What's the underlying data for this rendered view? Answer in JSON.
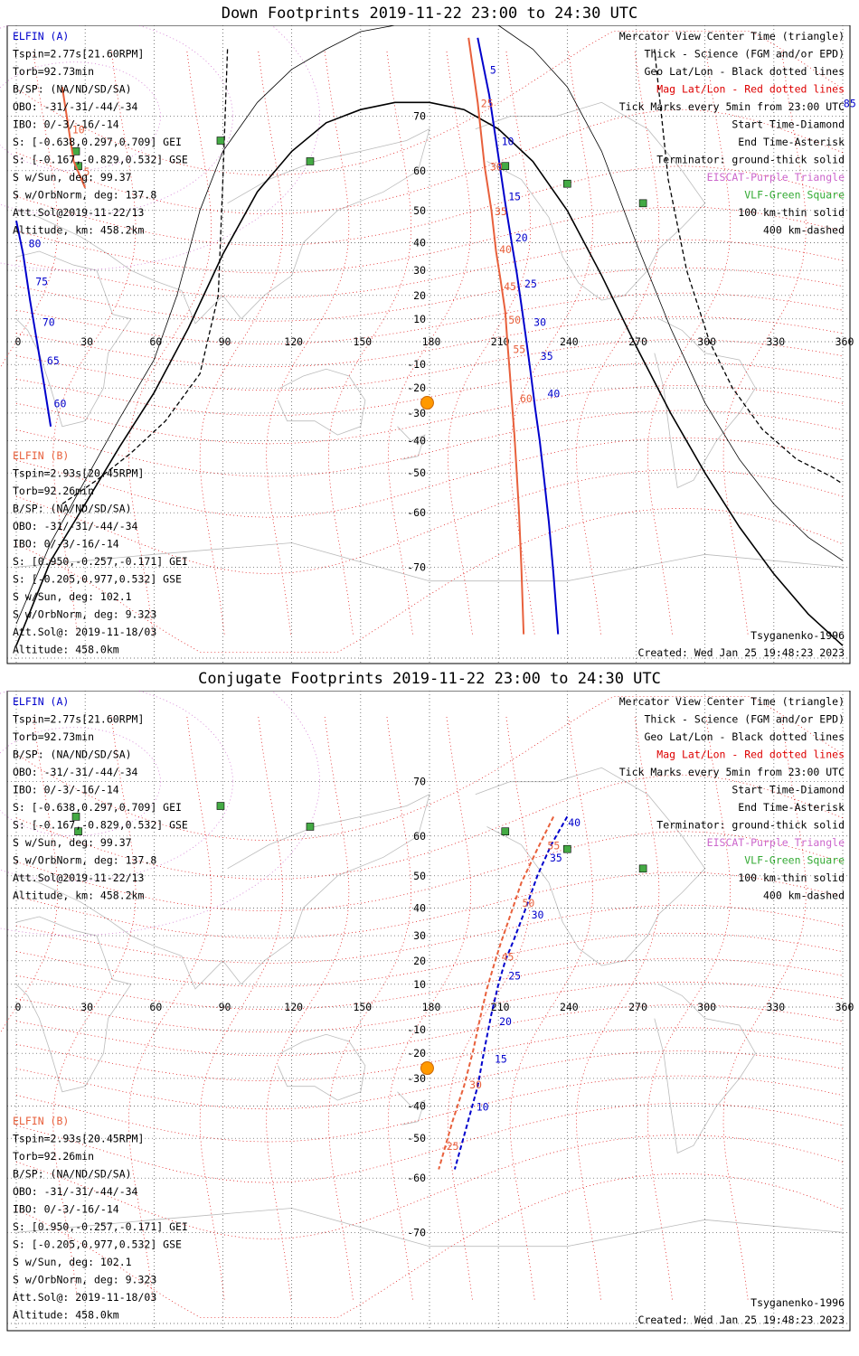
{
  "colors": {
    "a_elfin": "#0000cc",
    "b_elfin": "#e8603c",
    "mag": "#dd0000",
    "elisca": "#cc66cc",
    "vlf": "#33aa33",
    "sun": "#ff9900"
  },
  "panels": [
    {
      "title": "Down Footprints 2019-11-22 23:00 to 24:30 UTC",
      "elfin_a": {
        "name": "ELFIN (A)",
        "lines": [
          "Tspin=2.77s[21.60RPM]",
          "Torb=92.73min",
          "B/SP: (NA/ND/SD/SA)",
          "OBO: -31/-31/-44/-34",
          "IBO: 0/-3/-16/-14",
          "S: [-0.638,0.297,0.709] GEI",
          "S: [-0.167,-0.829,0.532] GSE",
          "S w/Sun, deg: 99.37",
          "S w/OrbNorm, deg: 137.8",
          "Att.Sol@2019-11-22/13",
          "Altitude, km: 458.2km"
        ]
      },
      "elfin_b": {
        "name": "ELFIN (B)",
        "lines": [
          "Tspin=2.93s[20.45RPM]",
          "Torb=92.26min",
          "B/SP: (NA/ND/SD/SA)",
          "OBO: -31/-31/-44/-34",
          "IBO: 0/-3/-16/-14",
          "S: [0.950,-0.257,-0.171] GEI",
          "S: [-0.205,0.977,0.532] GSE",
          "S w/Sun, deg: 102.1",
          "S w/OrbNorm, deg: 9.323",
          "Att.Sol@: 2019-11-18/03",
          "Altitude: 458.0km"
        ]
      },
      "legend": [
        "Mercator View Center Time (triangle)",
        "Thick - Science (FGM and/or EPD)",
        "Geo Lat/Lon - Black dotted lines",
        "Mag Lat/Lon - Red dotted lines",
        "Tick Marks every 5min from 23:00 UTC",
        "Start Time-Diamond",
        "End Time-Asterisk",
        "Terminator: ground-thick solid",
        "EISCAT-Purple Triangle",
        "VLF-Green Square",
        "100 km-thin solid",
        "400 km-dashed"
      ],
      "model": "Tsyganenko-1996",
      "created": "Created: Wed Jan 25 19:48:23 2023"
    },
    {
      "title": "Conjugate Footprints 2019-11-22 23:00 to 24:30 UTC",
      "elfin_a": {
        "name": "ELFIN (A)",
        "lines": [
          "Tspin=2.77s[21.60RPM]",
          "Torb=92.73min",
          "B/SP: (NA/ND/SD/SA)",
          "OBO: -31/-31/-44/-34",
          "IBO: 0/-3/-16/-14",
          "S: [-0.638,0.297,0.709] GEI",
          "S: [-0.167,-0.829,0.532] GSE",
          "S w/Sun, deg: 99.37",
          "S w/OrbNorm, deg: 137.8",
          "Att.Sol@2019-11-22/13",
          "Altitude, km: 458.2km"
        ]
      },
      "elfin_b": {
        "name": "ELFIN (B)",
        "lines": [
          "Tspin=2.93s[20.45RPM]",
          "Torb=92.26min",
          "B/SP: (NA/ND/SD/SA)",
          "OBO: -31/-31/-44/-34",
          "IBO: 0/-3/-16/-14",
          "S: [0.950,-0.257,-0.171] GEI",
          "S: [-0.205,0.977,0.532] GSE",
          "S w/Sun, deg: 102.1",
          "S w/OrbNorm, deg: 9.323",
          "Att.Sol@: 2019-11-18/03",
          "Altitude: 458.0km"
        ]
      },
      "legend": [
        "Mercator View Center Time (triangle)",
        "Thick - Science (FGM and/or EPD)",
        "Geo Lat/Lon - Black dotted lines",
        "Mag Lat/Lon - Red dotted lines",
        "Tick Marks every 5min from 23:00 UTC",
        "Start Time-Diamond",
        "End Time-Asterisk",
        "Terminator: ground-thick solid",
        "EISCAT-Purple Triangle",
        "VLF-Green Square",
        "100 km-thin solid",
        "400 km-dashed"
      ],
      "model": "Tsyganenko-1996",
      "created": "Created: Wed Jan 25 19:48:23 2023"
    }
  ],
  "chart_data": [
    {
      "type": "line",
      "title": "Down Footprints 2019-11-22 23:00 to 24:30 UTC",
      "projection": "mercator",
      "xlim": [
        0,
        360
      ],
      "ylim": [
        -80,
        80
      ],
      "x_ticks": [
        0,
        30,
        60,
        90,
        120,
        150,
        180,
        210,
        240,
        270,
        300,
        330,
        360
      ],
      "y_ticks": [
        70,
        60,
        50,
        40,
        30,
        20,
        10,
        -10,
        -20,
        -30,
        -40,
        -50,
        -60,
        -70
      ],
      "grid": true,
      "terminator": [
        [
          0,
          -79
        ],
        [
          15,
          -69
        ],
        [
          30,
          -58
        ],
        [
          45,
          -42
        ],
        [
          60,
          -22
        ],
        [
          75,
          6
        ],
        [
          90,
          36
        ],
        [
          105,
          55
        ],
        [
          120,
          64
        ],
        [
          135,
          69
        ],
        [
          150,
          71
        ],
        [
          165,
          72
        ],
        [
          180,
          72
        ],
        [
          195,
          71
        ],
        [
          210,
          68
        ],
        [
          225,
          62
        ],
        [
          240,
          50
        ],
        [
          255,
          28
        ],
        [
          270,
          -2
        ],
        [
          285,
          -30
        ],
        [
          300,
          -50
        ],
        [
          315,
          -63
        ],
        [
          330,
          -71
        ],
        [
          345,
          -76
        ],
        [
          360,
          -79
        ]
      ],
      "terminator_100km": [
        [
          0,
          -77
        ],
        [
          15,
          -66
        ],
        [
          30,
          -52
        ],
        [
          45,
          -32
        ],
        [
          60,
          -8
        ],
        [
          70,
          20
        ],
        [
          80,
          50
        ],
        [
          90,
          64
        ],
        [
          105,
          72
        ],
        [
          120,
          76
        ],
        [
          135,
          78
        ],
        [
          150,
          79.5
        ],
        [
          165,
          80
        ]
      ],
      "terminator_100km_east": [
        [
          210,
          80
        ],
        [
          225,
          78
        ],
        [
          240,
          74
        ],
        [
          255,
          64
        ],
        [
          270,
          40
        ],
        [
          285,
          6
        ],
        [
          300,
          -26
        ],
        [
          315,
          -46
        ],
        [
          330,
          -58
        ],
        [
          345,
          -65
        ],
        [
          360,
          -69
        ]
      ],
      "terminator_400km": [
        [
          20,
          -58
        ],
        [
          35,
          -52
        ],
        [
          50,
          -44
        ],
        [
          65,
          -33
        ],
        [
          80,
          -14
        ],
        [
          88,
          20
        ],
        [
          90,
          58
        ],
        [
          92,
          78
        ]
      ],
      "terminator_400km_east": [
        [
          278,
          78
        ],
        [
          284,
          58
        ],
        [
          292,
          30
        ],
        [
          302,
          0
        ],
        [
          312,
          -20
        ],
        [
          325,
          -36
        ],
        [
          340,
          -46
        ],
        [
          355,
          -51
        ],
        [
          360,
          -53
        ]
      ],
      "vlf_sites": [
        [
          26,
          64
        ],
        [
          27,
          61
        ],
        [
          89,
          66
        ],
        [
          128,
          62
        ],
        [
          213,
          61
        ],
        [
          240,
          57
        ],
        [
          273,
          52
        ]
      ],
      "sun": [
        179,
        -26
      ],
      "series": [
        {
          "name": "ELFIN (A)",
          "lon_lat": [
            [
              201,
              79
            ],
            [
              206,
              73
            ],
            [
              210,
              63
            ],
            [
              213,
              52
            ],
            [
              216,
              39
            ],
            [
              218,
              29
            ],
            [
              220,
              16
            ],
            [
              222,
              2
            ],
            [
              224,
              -13
            ],
            [
              226,
              -28
            ],
            [
              228,
              -40
            ],
            [
              230,
              -52
            ],
            [
              232,
              -62
            ],
            [
              234,
              -71
            ],
            [
              236,
              -78
            ]
          ],
          "ticks": [
            {
              "t": "5",
              "lon": 204,
              "lat": 76
            },
            {
              "t": "10",
              "lon": 209,
              "lat": 66
            },
            {
              "t": "15",
              "lon": 212,
              "lat": 54
            },
            {
              "t": "20",
              "lon": 215,
              "lat": 42
            },
            {
              "t": "25",
              "lon": 219,
              "lat": 25
            },
            {
              "t": "30",
              "lon": 223,
              "lat": 9
            },
            {
              "t": "35",
              "lon": 226,
              "lat": -6
            },
            {
              "t": "40",
              "lon": 229,
              "lat": -22
            }
          ]
        },
        {
          "name": "ELFIN (A) wrap",
          "lon_lat": [
            [
              0,
              47
            ],
            [
              3,
              36
            ],
            [
              6,
              18
            ],
            [
              9,
              0
            ],
            [
              12,
              -18
            ],
            [
              15,
              -35
            ]
          ],
          "ticks": [
            {
              "t": "80",
              "lon": 3,
              "lat": 40
            },
            {
              "t": "75",
              "lon": 6,
              "lat": 26
            },
            {
              "t": "70",
              "lon": 9,
              "lat": 9
            },
            {
              "t": "65",
              "lon": 11,
              "lat": -8
            },
            {
              "t": "60",
              "lon": 14,
              "lat": -26
            },
            {
              "t": "85",
              "lon": 358,
              "lat": 72
            }
          ]
        },
        {
          "name": "ELFIN (B)",
          "lon_lat": [
            [
              197,
              79
            ],
            [
              201,
              72
            ],
            [
              204,
              61
            ],
            [
              207,
              50
            ],
            [
              209,
              37
            ],
            [
              211,
              26
            ],
            [
              213,
              13
            ],
            [
              214,
              -1
            ],
            [
              215,
              -14
            ],
            [
              216,
              -27
            ],
            [
              217,
              -38
            ],
            [
              218,
              -50
            ],
            [
              219,
              -60
            ],
            [
              220,
              -70
            ],
            [
              221,
              -78
            ]
          ],
          "ticks": [
            {
              "t": "25",
              "lon": 200,
              "lat": 72
            },
            {
              "t": "30",
              "lon": 204,
              "lat": 61
            },
            {
              "t": "35",
              "lon": 206,
              "lat": 50
            },
            {
              "t": "40",
              "lon": 208,
              "lat": 38
            },
            {
              "t": "45",
              "lon": 210,
              "lat": 24
            },
            {
              "t": "50",
              "lon": 212,
              "lat": 10
            },
            {
              "t": "55",
              "lon": 214,
              "lat": -3
            },
            {
              "t": "60",
              "lon": 217,
              "lat": -24
            }
          ]
        },
        {
          "name": "ELFIN (B) wrap",
          "lon_lat": [
            [
              20,
              74
            ],
            [
              25,
              62
            ],
            [
              30,
              56
            ]
          ],
          "ticks": [
            {
              "t": "10",
              "lon": 22,
              "lat": 68
            },
            {
              "t": "5",
              "lon": 27,
              "lat": 60
            }
          ]
        }
      ]
    },
    {
      "type": "line",
      "title": "Conjugate Footprints 2019-11-22 23:00 to 24:30 UTC",
      "projection": "mercator",
      "xlim": [
        0,
        360
      ],
      "ylim": [
        -80,
        80
      ],
      "x_ticks": [
        0,
        30,
        60,
        90,
        120,
        150,
        180,
        210,
        240,
        270,
        300,
        330,
        360
      ],
      "y_ticks": [
        70,
        60,
        50,
        40,
        30,
        20,
        10,
        -10,
        -20,
        -30,
        -40,
        -50,
        -60,
        -70
      ],
      "grid": true,
      "vlf_sites": [
        [
          26,
          64
        ],
        [
          27,
          61
        ],
        [
          89,
          66
        ],
        [
          128,
          62
        ],
        [
          213,
          61
        ],
        [
          240,
          57
        ],
        [
          273,
          52
        ]
      ],
      "sun": [
        179,
        -26
      ],
      "series": [
        {
          "name": "ELFIN (A)",
          "lon_lat": [
            [
              240,
              64
            ],
            [
              233,
              58
            ],
            [
              227,
              50
            ],
            [
              222,
              40
            ],
            [
              217,
              29
            ],
            [
              213,
              20
            ],
            [
              210,
              10
            ],
            [
              207,
              -3
            ],
            [
              204,
              -18
            ],
            [
              201,
              -33
            ],
            [
              196,
              -47
            ],
            [
              191,
              -58
            ]
          ],
          "ticks": [
            {
              "t": "40",
              "lon": 238,
              "lat": 63
            },
            {
              "t": "35",
              "lon": 230,
              "lat": 55
            },
            {
              "t": "30",
              "lon": 222,
              "lat": 38
            },
            {
              "t": "25",
              "lon": 212,
              "lat": 14
            },
            {
              "t": "20",
              "lon": 208,
              "lat": -6
            },
            {
              "t": "15",
              "lon": 206,
              "lat": -22
            },
            {
              "t": "10",
              "lon": 198,
              "lat": -40
            }
          ]
        },
        {
          "name": "ELFIN (B)",
          "lon_lat": [
            [
              234,
              64
            ],
            [
              227,
              57
            ],
            [
              220,
              48
            ],
            [
              215,
              37
            ],
            [
              211,
              27
            ],
            [
              208,
              18
            ],
            [
              205,
              8
            ],
            [
              202,
              -5
            ],
            [
              199,
              -19
            ],
            [
              195,
              -33
            ],
            [
              190,
              -45
            ],
            [
              184,
              -58
            ]
          ],
          "ticks": [
            {
              "t": "55",
              "lon": 229,
              "lat": 58
            },
            {
              "t": "50",
              "lon": 218,
              "lat": 42
            },
            {
              "t": "45",
              "lon": 209,
              "lat": 22
            },
            {
              "t": "30",
              "lon": 195,
              "lat": -32
            },
            {
              "t": "25",
              "lon": 185,
              "lat": -52
            }
          ]
        }
      ]
    }
  ]
}
